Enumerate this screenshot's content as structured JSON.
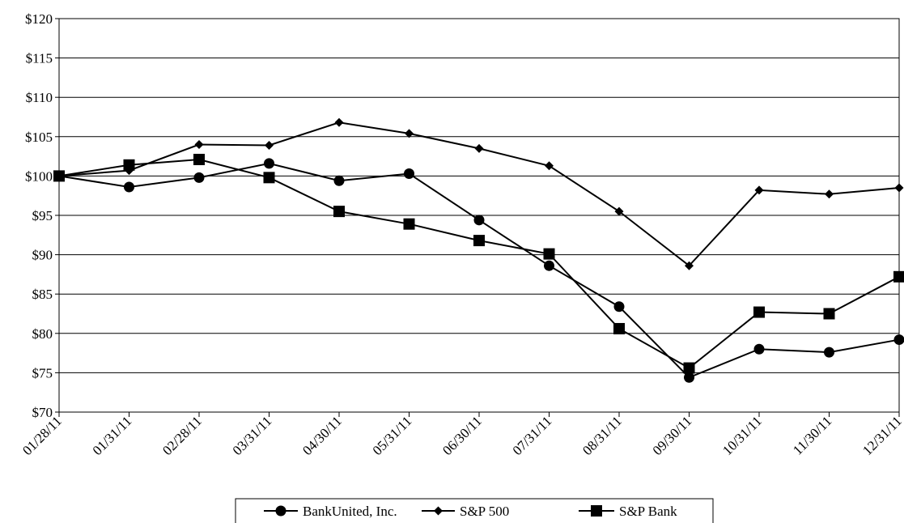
{
  "chart_data": {
    "type": "line",
    "title": "",
    "xlabel": "",
    "ylabel": "",
    "categories": [
      "01/28/11",
      "01/31/11",
      "02/28/11",
      "03/31/11",
      "04/30/11",
      "05/31/11",
      "06/30/11",
      "07/31/11",
      "08/31/11",
      "09/30/11",
      "10/31/11",
      "11/30/11",
      "12/31/11"
    ],
    "ylim": [
      70,
      120
    ],
    "yticks": [
      70,
      75,
      80,
      85,
      90,
      95,
      100,
      105,
      110,
      115,
      120
    ],
    "ytick_labels": [
      "$70",
      "$75",
      "$80",
      "$85",
      "$90",
      "$95",
      "$100",
      "$105",
      "$110",
      "$115",
      "$120"
    ],
    "grid": "horizontal",
    "legend_position": "bottom",
    "series": [
      {
        "name": "BankUnited, Inc.",
        "marker": "circle",
        "values": [
          100,
          98.6,
          99.8,
          101.6,
          99.4,
          100.3,
          94.4,
          88.6,
          83.4,
          74.4,
          78.0,
          77.6,
          79.2
        ]
      },
      {
        "name": "S&P 500",
        "marker": "diamond",
        "values": [
          100,
          100.7,
          104.0,
          103.9,
          106.8,
          105.4,
          103.5,
          101.3,
          95.5,
          88.6,
          98.2,
          97.7,
          98.5
        ]
      },
      {
        "name": "S&P Bank",
        "marker": "square",
        "values": [
          100,
          101.4,
          102.1,
          99.8,
          95.5,
          93.9,
          91.8,
          90.1,
          80.6,
          75.6,
          82.7,
          82.5,
          87.2
        ]
      }
    ]
  }
}
